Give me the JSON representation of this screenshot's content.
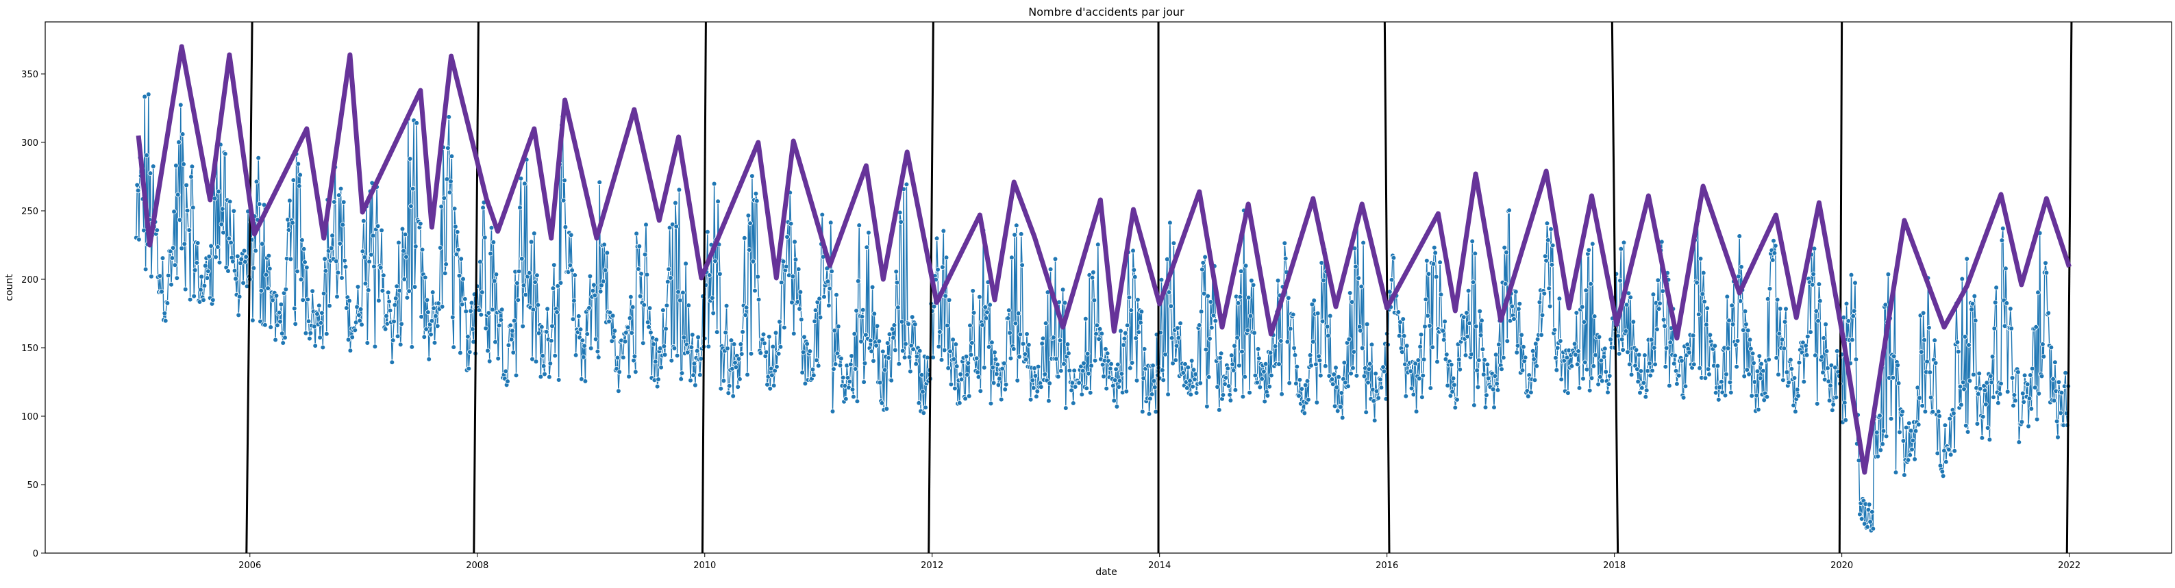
{
  "chart_data": {
    "type": "line",
    "title": "Nombre d'accidents par jour",
    "xlabel": "date",
    "ylabel": "count",
    "xlim": [
      2004.2,
      2022.9
    ],
    "ylim": [
      0,
      388
    ],
    "x_ticks": [
      2006,
      2008,
      2010,
      2012,
      2014,
      2016,
      2018,
      2020,
      2022
    ],
    "y_ticks": [
      0,
      50,
      100,
      150,
      200,
      250,
      300,
      350
    ],
    "grid": false,
    "legend": "none",
    "colors": {
      "daily": "#1f77b4",
      "marker_edge": "#ffffff",
      "monthly_peaks": "#663399",
      "year_lines": "#000000"
    },
    "vertical_lines": [
      {
        "x": [
          2005.97,
          2006.02
        ],
        "y": [
          0,
          388
        ]
      },
      {
        "x": [
          2007.97,
          2008.01
        ],
        "y": [
          0,
          388
        ]
      },
      {
        "x": [
          2009.98,
          2010.01
        ],
        "y": [
          0,
          388
        ]
      },
      {
        "x": [
          2011.97,
          2012.01
        ],
        "y": [
          0,
          388
        ]
      },
      {
        "x": [
          2013.99,
          2013.99
        ],
        "y": [
          0,
          388
        ]
      },
      {
        "x": [
          2016.02,
          2015.98
        ],
        "y": [
          0,
          388
        ]
      },
      {
        "x": [
          2018.03,
          2017.98
        ],
        "y": [
          0,
          388
        ]
      },
      {
        "x": [
          1999.98,
          2020.0
        ],
        "y": [
          0,
          0
        ],
        "note": ""
      },
      {
        "x": [
          2019.98,
          2020.0
        ],
        "y": [
          0,
          388
        ]
      },
      {
        "x": [
          2021.98,
          2022.02
        ],
        "y": [
          0,
          388
        ]
      }
    ],
    "series": [
      {
        "style": "line-with-markers",
        "x_start": "2005-01-01",
        "x_end": "2021-12-31",
        "frequency": "daily",
        "values_by_period": [
          {
            "period": "2005",
            "min": 133,
            "max": 372
          },
          {
            "period": "2006",
            "min": 113,
            "max": 330
          },
          {
            "period": "2007",
            "min": 91,
            "max": 365
          },
          {
            "period": "2008",
            "min": 84,
            "max": 338
          },
          {
            "period": "2009",
            "min": 86,
            "max": 300
          },
          {
            "period": "2010",
            "min": 80,
            "max": 302
          },
          {
            "period": "2011",
            "min": 68,
            "max": 296
          },
          {
            "period": "2012",
            "min": 77,
            "max": 265
          },
          {
            "period": "2013",
            "min": 73,
            "max": 259
          },
          {
            "period": "2014",
            "min": 70,
            "max": 265
          },
          {
            "period": "2015",
            "min": 62,
            "max": 262
          },
          {
            "period": "2016",
            "min": 73,
            "max": 270
          },
          {
            "period": "2017",
            "min": 82,
            "max": 280
          },
          {
            "period": "2018",
            "min": 83,
            "max": 265
          },
          {
            "period": "2019",
            "min": 73,
            "max": 262
          },
          {
            "period": "2020",
            "min": 15,
            "max": 252
          },
          {
            "period": "2021",
            "min": 47,
            "max": 270
          }
        ]
      },
      {
        "style": "thick-line",
        "x": [
          2005.02,
          2005.12,
          2005.4,
          2005.65,
          2005.82,
          2006.04,
          2006.5,
          2006.65,
          2006.88,
          2006.99,
          2007.5,
          2007.6,
          2007.77,
          2008.08,
          2008.18,
          2008.5,
          2008.65,
          2008.77,
          2009.05,
          2009.38,
          2009.6,
          2009.77,
          2009.97,
          2010.47,
          2010.63,
          2010.78,
          2011.1,
          2011.42,
          2011.57,
          2011.78,
          2012.04,
          2012.42,
          2012.55,
          2012.72,
          2012.9,
          2013.15,
          2013.48,
          2013.6,
          2013.77,
          2014.0,
          2014.35,
          2014.55,
          2014.78,
          2014.98,
          2015.35,
          2015.55,
          2015.78,
          2016.0,
          2016.45,
          2016.6,
          2016.78,
          2017.0,
          2017.4,
          2017.6,
          2017.8,
          2018.02,
          2018.3,
          2018.55,
          2018.78,
          2019.1,
          2019.42,
          2019.6,
          2019.8,
          2020.02,
          2020.2,
          2020.55,
          2020.9,
          2021.1,
          2021.4,
          2021.58,
          2021.8,
          2022.0
        ],
        "y": [
          305,
          225,
          370,
          258,
          364,
          233,
          310,
          230,
          364,
          249,
          338,
          238,
          363,
          259,
          235,
          310,
          230,
          331,
          230,
          324,
          243,
          304,
          201,
          300,
          201,
          301,
          210,
          283,
          200,
          293,
          183,
          247,
          185,
          271,
          231,
          165,
          258,
          162,
          251,
          182,
          264,
          165,
          255,
          160,
          259,
          180,
          255,
          179,
          248,
          177,
          277,
          170,
          279,
          179,
          261,
          167,
          261,
          157,
          268,
          190,
          247,
          172,
          256,
          153,
          59,
          243,
          165,
          195,
          262,
          196,
          259,
          209
        ]
      }
    ]
  }
}
